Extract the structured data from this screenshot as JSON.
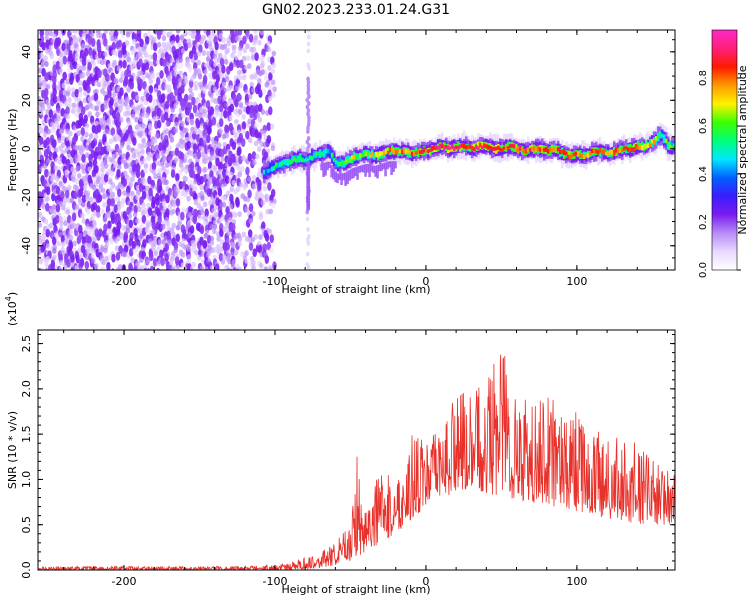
{
  "figure_title": "GN02.2023.233.01.24.G31",
  "colors": {
    "snr_line": "#e8312a",
    "axis": "#000000",
    "background": "#ffffff",
    "colormap": [
      "#ffffff",
      "#e9d8ff",
      "#b98cf7",
      "#7a1cf0",
      "#3a1cff",
      "#0060ff",
      "#00e8ff",
      "#00ff7a",
      "#3cff00",
      "#fff200",
      "#ff9a00",
      "#ff1a00",
      "#ff1f7a",
      "#ff28c8"
    ]
  },
  "chart_data": [
    {
      "type": "heatmap",
      "title": "",
      "xlabel": "Height of straight line (km)",
      "ylabel": "Frequency (Hz)",
      "xlim": [
        -257,
        165
      ],
      "ylim": [
        -50,
        49
      ],
      "x_ticks": [
        -200,
        -100,
        0,
        100
      ],
      "x_tick_labels": [
        "-200",
        "-100",
        "0",
        "100"
      ],
      "y_ticks": [
        -40,
        -20,
        0,
        20,
        40
      ],
      "y_tick_labels": [
        "-40",
        "-20",
        "0",
        "20",
        "40"
      ],
      "colorbar": {
        "label": "Normalized spectral amplitude",
        "range": [
          0,
          1
        ],
        "ticks": [
          0.0,
          0.2,
          0.4,
          0.6,
          0.8
        ],
        "tick_labels": [
          "0.0",
          "0.2",
          "0.4",
          "0.6",
          "0.8"
        ]
      },
      "noise_region": {
        "x_from": -257,
        "x_to": -102,
        "freq_from": -50,
        "freq_to": 49,
        "amplitude_range": [
          0.05,
          0.15
        ]
      },
      "spike_line": {
        "x": -78,
        "freq_from": -50,
        "freq_to": 49
      },
      "signal_track": {
        "x": [
          -108,
          -100,
          -95,
          -90,
          -85,
          -80,
          -75,
          -70,
          -65,
          -60,
          -55,
          -50,
          -45,
          -40,
          -35,
          -30,
          -25,
          -20,
          -15,
          -10,
          -5,
          0,
          5,
          10,
          15,
          20,
          25,
          30,
          35,
          40,
          45,
          50,
          55,
          60,
          65,
          70,
          75,
          80,
          85,
          90,
          95,
          100,
          105,
          110,
          115,
          120,
          125,
          130,
          135,
          140,
          145,
          150,
          155,
          160,
          165
        ],
        "freq": [
          -10,
          -7,
          -6,
          -5,
          -4,
          -5,
          -3,
          -2,
          -1,
          -6,
          -6,
          -4,
          -3,
          -2,
          -3,
          -2,
          -1,
          -1,
          -1,
          -2,
          -1,
          -1,
          0,
          1,
          0,
          1,
          1,
          0,
          1,
          1,
          0,
          0,
          1,
          0,
          -1,
          0,
          0,
          -1,
          0,
          -2,
          -3,
          -2,
          -3,
          -1,
          -1,
          -2,
          -1,
          0,
          0,
          1,
          1,
          3,
          6,
          1,
          1
        ],
        "amplitude": [
          0.45,
          0.5,
          0.55,
          0.5,
          0.6,
          0.5,
          0.5,
          0.55,
          0.45,
          0.55,
          0.6,
          0.7,
          0.6,
          0.65,
          0.7,
          0.75,
          0.8,
          0.8,
          0.75,
          0.8,
          0.85,
          0.85,
          0.9,
          0.9,
          0.95,
          0.9,
          0.85,
          0.9,
          0.9,
          0.85,
          0.9,
          0.8,
          0.85,
          0.85,
          0.8,
          0.85,
          0.8,
          0.85,
          0.8,
          0.8,
          0.85,
          0.8,
          0.75,
          0.8,
          0.8,
          0.75,
          0.8,
          0.8,
          0.85,
          0.8,
          0.7,
          0.75,
          0.55,
          0.6,
          0.55
        ]
      }
    },
    {
      "type": "line",
      "title": "",
      "xlabel": "Height of straight line (km)",
      "ylabel": "SNR (10 * v/v)",
      "y_multiplier_label": "(x10",
      "y_multiplier_exponent": "4",
      "y_multiplier_close": ")",
      "xlim": [
        -257,
        165
      ],
      "ylim": [
        0,
        2.65
      ],
      "x_ticks": [
        -200,
        -100,
        0,
        100
      ],
      "x_tick_labels": [
        "-200",
        "-100",
        "0",
        "100"
      ],
      "y_ticks": [
        0.0,
        0.5,
        1.0,
        1.5,
        2.0,
        2.5
      ],
      "y_tick_labels": [
        "0.0",
        "0.5",
        "1.0",
        "1.5",
        "2.0",
        "2.5"
      ],
      "series": [
        {
          "envelope_x": [
            -257,
            -150,
            -110,
            -90,
            -80,
            -70,
            -60,
            -50,
            -45,
            -40,
            -30,
            -20,
            -10,
            0,
            10,
            20,
            30,
            40,
            50,
            60,
            70,
            80,
            90,
            100,
            110,
            120,
            130,
            140,
            150,
            160,
            165
          ],
          "envelope_low": [
            0.0,
            0.0,
            0.0,
            0.0,
            0.01,
            0.02,
            0.05,
            0.1,
            0.15,
            0.2,
            0.3,
            0.4,
            0.55,
            0.7,
            0.8,
            0.85,
            0.9,
            0.85,
            0.8,
            0.75,
            0.75,
            0.7,
            0.7,
            0.65,
            0.6,
            0.55,
            0.55,
            0.5,
            0.5,
            0.5,
            0.45
          ],
          "envelope_high": [
            0.04,
            0.04,
            0.05,
            0.08,
            0.15,
            0.2,
            0.3,
            0.55,
            1.4,
            0.8,
            1.1,
            1.0,
            1.5,
            1.45,
            1.55,
            2.05,
            1.9,
            2.2,
            2.65,
            2.1,
            1.8,
            2.15,
            1.7,
            1.75,
            1.55,
            1.5,
            1.45,
            1.4,
            1.25,
            1.1,
            1.05
          ]
        }
      ]
    }
  ]
}
